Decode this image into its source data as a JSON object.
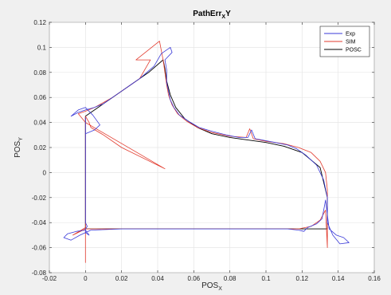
{
  "chart_data": {
    "type": "line",
    "title_main": "PathErr",
    "title_sub": "X",
    "title_tail": "Y",
    "xlabel_main": "POS",
    "xlabel_sub": "X",
    "ylabel_main": "POS",
    "ylabel_sub": "Y",
    "xlim": [
      -0.02,
      0.16
    ],
    "ylim": [
      -0.08,
      0.12
    ],
    "xticks": [
      "-0.02",
      "0",
      "0.02",
      "0.04",
      "0.06",
      "0.08",
      "0.1",
      "0.12",
      "0.14",
      "0.16"
    ],
    "yticks": [
      "-0.08",
      "-0.06",
      "-0.04",
      "-0.02",
      "0",
      "0.02",
      "0.04",
      "0.06",
      "0.08",
      "0.1",
      "0.12"
    ],
    "xtick_values": [
      -0.02,
      0,
      0.02,
      0.04,
      0.06,
      0.08,
      0.1,
      0.12,
      0.14,
      0.16
    ],
    "ytick_values": [
      -0.08,
      -0.06,
      -0.04,
      -0.02,
      0,
      0.02,
      0.04,
      0.06,
      0.08,
      0.1,
      0.12
    ],
    "grid": true,
    "legend_position": "top-right",
    "series": [
      {
        "name": "Exp",
        "color": "#3a3ad8",
        "x": [
          0,
          0,
          0.001,
          0.0,
          0.0,
          0.002,
          0.0,
          -0.005,
          -0.01,
          -0.012,
          -0.008,
          -0.003,
          0.003,
          0.02,
          0.04,
          0.06,
          0.08,
          0.1,
          0.112,
          0.118,
          0.121,
          0.123,
          0.128,
          0.131,
          0.132,
          0.133,
          0.135,
          0.139,
          0.143,
          0.146,
          0.141,
          0.137,
          0.134,
          0.134,
          0.132,
          0.128,
          0.122,
          0.117,
          0.112,
          0.105,
          0.098,
          0.094,
          0.092,
          0.09,
          0.085,
          0.078,
          0.07,
          0.063,
          0.057,
          0.052,
          0.049,
          0.047,
          0.046,
          0.045,
          0.045,
          0.044,
          0.048,
          0.047,
          0.042,
          0.038,
          0.034,
          0.03,
          0.025,
          0.02,
          0.015,
          0.01,
          0.005,
          0.0,
          -0.004,
          -0.008,
          -0.004,
          0.0,
          0.004,
          0.008,
          0.005,
          0.0,
          0.0
        ],
        "y": [
          0.044,
          -0.04,
          -0.043,
          -0.045,
          -0.048,
          -0.05,
          -0.046,
          -0.047,
          -0.049,
          -0.052,
          -0.054,
          -0.05,
          -0.046,
          -0.045,
          -0.045,
          -0.045,
          -0.045,
          -0.045,
          -0.045,
          -0.046,
          -0.047,
          -0.044,
          -0.041,
          -0.037,
          -0.03,
          -0.022,
          -0.045,
          -0.05,
          -0.052,
          -0.056,
          -0.057,
          -0.05,
          -0.04,
          -0.02,
          -0.006,
          0.006,
          0.014,
          0.019,
          0.022,
          0.024,
          0.026,
          0.027,
          0.034,
          0.028,
          0.028,
          0.03,
          0.033,
          0.036,
          0.041,
          0.046,
          0.052,
          0.058,
          0.065,
          0.072,
          0.082,
          0.09,
          0.096,
          0.1,
          0.095,
          0.085,
          0.08,
          0.075,
          0.07,
          0.065,
          0.06,
          0.055,
          0.052,
          0.05,
          0.048,
          0.045,
          0.05,
          0.052,
          0.046,
          0.038,
          0.034,
          0.031,
          0.044
        ]
      },
      {
        "name": "SIM",
        "color": "#e23b2e",
        "x": [
          0.0,
          0.0,
          0.0,
          0.0,
          0.0,
          -0.007,
          0.0,
          0.02,
          0.04,
          0.06,
          0.08,
          0.1,
          0.118,
          0.125,
          0.13,
          0.133,
          0.134,
          0.134,
          0.134,
          0.133,
          0.13,
          0.125,
          0.118,
          0.11,
          0.1,
          0.093,
          0.091,
          0.089,
          0.08,
          0.07,
          0.062,
          0.056,
          0.051,
          0.048,
          0.046,
          0.045,
          0.044,
          0.043,
          0.041,
          0.028,
          0.036,
          0.03,
          0.025,
          0.02,
          0.015,
          0.01,
          0.005,
          0.0,
          -0.004,
          0.0,
          0.044,
          0.02,
          0.01,
          0.003,
          0.002,
          0.0
        ],
        "y": [
          0.045,
          -0.06,
          -0.072,
          -0.046,
          -0.044,
          -0.05,
          -0.045,
          -0.045,
          -0.045,
          -0.045,
          -0.045,
          -0.045,
          -0.045,
          -0.043,
          -0.038,
          -0.03,
          -0.06,
          -0.034,
          -0.014,
          0.0,
          0.009,
          0.016,
          0.02,
          0.023,
          0.025,
          0.027,
          0.035,
          0.028,
          0.029,
          0.032,
          0.036,
          0.041,
          0.047,
          0.054,
          0.062,
          0.07,
          0.08,
          0.09,
          0.105,
          0.09,
          0.09,
          0.075,
          0.07,
          0.065,
          0.06,
          0.056,
          0.052,
          0.049,
          0.047,
          0.04,
          0.003,
          0.02,
          0.03,
          0.036,
          0.04,
          0.045
        ]
      },
      {
        "name": "POSC",
        "color": "#000000",
        "x": [
          0.0,
          0.0,
          0.02,
          0.05,
          0.08,
          0.11,
          0.134,
          0.134,
          0.13,
          0.12,
          0.11,
          0.1,
          0.09,
          0.08,
          0.07,
          0.062,
          0.055,
          0.05,
          0.047,
          0.045,
          0.044,
          0.043,
          0.035,
          0.025,
          0.015,
          0.005,
          0.0
        ],
        "y": [
          0.045,
          -0.045,
          -0.045,
          -0.045,
          -0.045,
          -0.045,
          -0.045,
          -0.02,
          0.004,
          0.016,
          0.021,
          0.024,
          0.026,
          0.028,
          0.031,
          0.036,
          0.043,
          0.052,
          0.062,
          0.073,
          0.083,
          0.09,
          0.08,
          0.07,
          0.06,
          0.05,
          0.045
        ]
      }
    ]
  }
}
